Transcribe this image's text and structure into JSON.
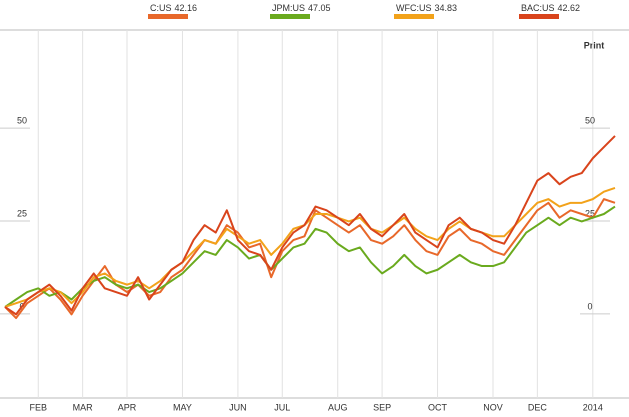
{
  "chart_data": {
    "type": "line",
    "print_label": "Print",
    "categories": [
      null,
      null,
      null,
      "FEB",
      null,
      null,
      null,
      "MAR",
      null,
      null,
      null,
      "APR",
      null,
      null,
      null,
      null,
      "MAY",
      null,
      null,
      null,
      null,
      "JUN",
      null,
      null,
      null,
      "JUL",
      null,
      null,
      null,
      null,
      "AUG",
      null,
      null,
      null,
      "SEP",
      null,
      null,
      null,
      null,
      "OCT",
      null,
      null,
      null,
      null,
      "NOV",
      null,
      null,
      null,
      "DEC",
      null,
      null,
      null,
      null,
      "2014",
      null,
      null
    ],
    "ylim": [
      -24.5,
      74.5
    ],
    "yticks": [
      0,
      25,
      50
    ],
    "grid": true,
    "series": [
      {
        "name": "C:US",
        "last_price": 42.16,
        "color": "#e8682a",
        "values": [
          0,
          -3,
          1,
          3,
          5,
          2,
          -2,
          3,
          7,
          11,
          6,
          4,
          6,
          3,
          4,
          8,
          10,
          14,
          18,
          17,
          22,
          20,
          16,
          17,
          8,
          15,
          18,
          19,
          26,
          24,
          22,
          20,
          22,
          18,
          17,
          19,
          22,
          18,
          15,
          14,
          19,
          21,
          18,
          17,
          15,
          14,
          18,
          22,
          26,
          28,
          24,
          26,
          25,
          24,
          29,
          28
        ]
      },
      {
        "name": "JPM:US",
        "last_price": 47.05,
        "color": "#6aaa1e",
        "values": [
          0,
          2,
          4,
          5,
          3,
          4,
          2,
          5,
          7,
          8,
          6,
          5,
          6,
          4,
          5,
          7,
          9,
          12,
          15,
          14,
          18,
          16,
          13,
          14,
          10,
          13,
          16,
          17,
          21,
          20,
          17,
          15,
          16,
          12,
          9,
          11,
          14,
          11,
          9,
          10,
          12,
          14,
          12,
          11,
          11,
          12,
          16,
          20,
          22,
          24,
          22,
          24,
          23,
          24,
          25,
          27
        ]
      },
      {
        "name": "WFC:US",
        "last_price": 34.83,
        "color": "#f2a21a",
        "values": [
          0,
          1,
          2,
          4,
          5,
          4,
          1,
          4,
          8,
          9,
          7,
          6,
          7,
          5,
          7,
          10,
          12,
          15,
          18,
          17,
          21,
          19,
          17,
          18,
          14,
          17,
          21,
          22,
          25,
          25,
          24,
          23,
          24,
          21,
          20,
          22,
          24,
          21,
          19,
          18,
          21,
          23,
          21,
          20,
          19,
          19,
          22,
          25,
          28,
          29,
          27,
          28,
          28,
          29,
          31,
          32
        ]
      },
      {
        "name": "BAC:US",
        "last_price": 42.62,
        "color": "#d9441c",
        "values": [
          0,
          -2,
          2,
          4,
          6,
          3,
          -1,
          5,
          9,
          5,
          4,
          3,
          8,
          2,
          6,
          10,
          12,
          18,
          22,
          20,
          26,
          18,
          15,
          14,
          10,
          16,
          20,
          22,
          27,
          26,
          24,
          22,
          25,
          21,
          19,
          22,
          25,
          20,
          18,
          16,
          22,
          24,
          21,
          20,
          18,
          17,
          22,
          28,
          34,
          36,
          33,
          35,
          36,
          40,
          43,
          46
        ]
      }
    ]
  }
}
